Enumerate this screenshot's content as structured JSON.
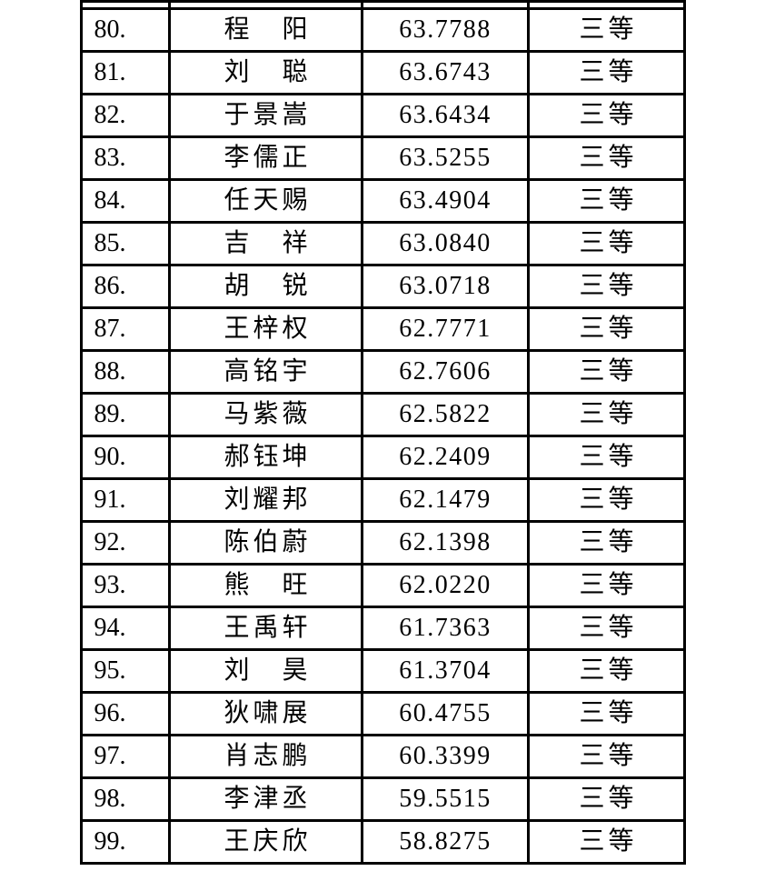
{
  "colors": {
    "page_background": "#ffffff",
    "table_border": "#000000",
    "text": "#000000"
  },
  "table": {
    "rows": [
      {
        "rank": "80.",
        "name": "程　阳",
        "score": "63.7788",
        "grade": "三等"
      },
      {
        "rank": "81.",
        "name": "刘　聪",
        "score": "63.6743",
        "grade": "三等"
      },
      {
        "rank": "82.",
        "name": "于景嵩",
        "score": "63.6434",
        "grade": "三等"
      },
      {
        "rank": "83.",
        "name": "李儒正",
        "score": "63.5255",
        "grade": "三等"
      },
      {
        "rank": "84.",
        "name": "任天赐",
        "score": "63.4904",
        "grade": "三等"
      },
      {
        "rank": "85.",
        "name": "吉　祥",
        "score": "63.0840",
        "grade": "三等"
      },
      {
        "rank": "86.",
        "name": "胡　锐",
        "score": "63.0718",
        "grade": "三等"
      },
      {
        "rank": "87.",
        "name": "王梓权",
        "score": "62.7771",
        "grade": "三等"
      },
      {
        "rank": "88.",
        "name": "高铭宇",
        "score": "62.7606",
        "grade": "三等"
      },
      {
        "rank": "89.",
        "name": "马紫薇",
        "score": "62.5822",
        "grade": "三等"
      },
      {
        "rank": "90.",
        "name": "郝钰坤",
        "score": "62.2409",
        "grade": "三等"
      },
      {
        "rank": "91.",
        "name": "刘耀邦",
        "score": "62.1479",
        "grade": "三等"
      },
      {
        "rank": "92.",
        "name": "陈伯蔚",
        "score": "62.1398",
        "grade": "三等"
      },
      {
        "rank": "93.",
        "name": "熊　旺",
        "score": "62.0220",
        "grade": "三等"
      },
      {
        "rank": "94.",
        "name": "王禹轩",
        "score": "61.7363",
        "grade": "三等"
      },
      {
        "rank": "95.",
        "name": "刘　昊",
        "score": "61.3704",
        "grade": "三等"
      },
      {
        "rank": "96.",
        "name": "狄啸展",
        "score": "60.4755",
        "grade": "三等"
      },
      {
        "rank": "97.",
        "name": "肖志鹏",
        "score": "60.3399",
        "grade": "三等"
      },
      {
        "rank": "98.",
        "name": "李津丞",
        "score": "59.5515",
        "grade": "三等"
      },
      {
        "rank": "99.",
        "name": "王庆欣",
        "score": "58.8275",
        "grade": "三等"
      }
    ]
  }
}
